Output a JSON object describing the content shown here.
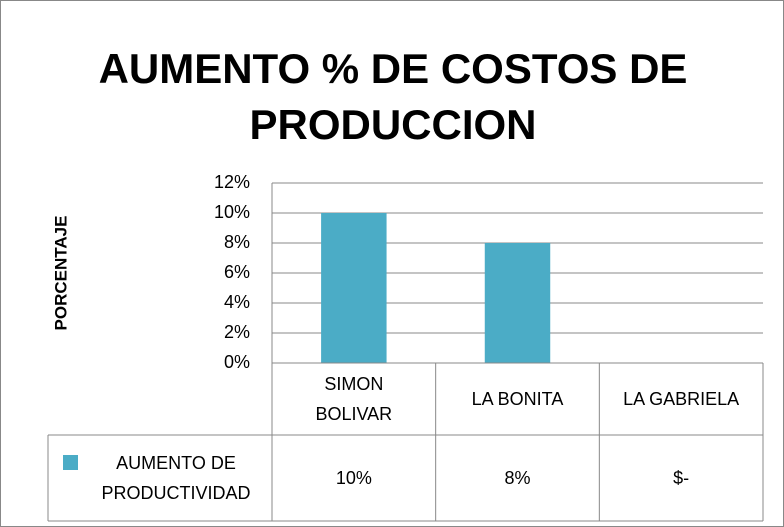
{
  "chart_data": {
    "type": "bar",
    "title": "AUMENTO % DE COSTOS DE PRODUCCION",
    "y_label": "PORCENTAJE",
    "categories": [
      "SIMON BOLIVAR",
      "LA BONITA",
      "LA GABRIELA"
    ],
    "series": [
      {
        "name": "AUMENTO DE PRODUCTIVIDAD",
        "color": "#4bacc6",
        "values": [
          10,
          8,
          0
        ],
        "value_labels": [
          "10%",
          "8%",
          "$-"
        ]
      }
    ],
    "ylim": [
      0,
      12
    ],
    "yticks": [
      {
        "value": 0,
        "label": "0%"
      },
      {
        "value": 2,
        "label": "2%"
      },
      {
        "value": 4,
        "label": "4%"
      },
      {
        "value": 6,
        "label": "6%"
      },
      {
        "value": 8,
        "label": "8%"
      },
      {
        "value": 10,
        "label": "10%"
      },
      {
        "value": 12,
        "label": "12%"
      }
    ],
    "grid": true,
    "data_table": true
  }
}
